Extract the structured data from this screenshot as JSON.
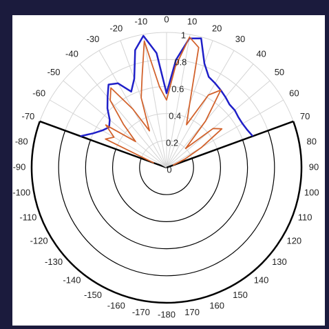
{
  "chart_data": {
    "type": "polar",
    "theta": [
      -70,
      -65,
      -60,
      -55,
      -50,
      -45,
      -40,
      -35,
      -30,
      -25,
      -20,
      -15,
      -10,
      -5,
      0,
      5,
      10,
      15,
      20,
      25,
      30,
      35,
      40,
      45,
      50,
      55,
      60,
      65,
      70
    ],
    "series": [
      {
        "color": "#1f1fc8",
        "values": [
          0.68,
          0.6,
          0.55,
          0.52,
          0.55,
          0.62,
          0.68,
          0.75,
          0.72,
          0.62,
          0.7,
          0.9,
          0.99,
          0.85,
          0.55,
          0.8,
          0.97,
          0.99,
          0.82,
          0.74,
          0.72,
          0.7,
          0.68,
          0.66,
          0.66,
          0.65,
          0.65,
          0.66,
          0.68
        ]
      },
      {
        "color": "#d2622c",
        "values": [
          0.1,
          0.5,
          0.45,
          0.55,
          0.3,
          0.45,
          0.65,
          0.72,
          0.5,
          0.3,
          0.55,
          0.7,
          0.95,
          0.6,
          0.5,
          0.75,
          0.98,
          0.92,
          0.5,
          0.35,
          0.62,
          0.7,
          0.45,
          0.2,
          0.45,
          0.5,
          0.3,
          0.15,
          0.05
        ]
      }
    ],
    "rlim": [
      0,
      1
    ],
    "rticks": [
      0,
      0.2,
      0.4,
      0.6,
      0.8,
      1
    ],
    "thetalim": [
      -70,
      70
    ],
    "thetaticks": [
      -180,
      -170,
      -160,
      -150,
      -140,
      -130,
      -120,
      -110,
      -100,
      -90,
      -80,
      -70,
      -60,
      -50,
      -40,
      -30,
      -20,
      -10,
      0,
      10,
      20,
      30,
      40,
      50,
      60,
      70,
      80,
      90,
      100,
      110,
      120,
      130,
      140,
      150,
      160,
      170
    ]
  }
}
